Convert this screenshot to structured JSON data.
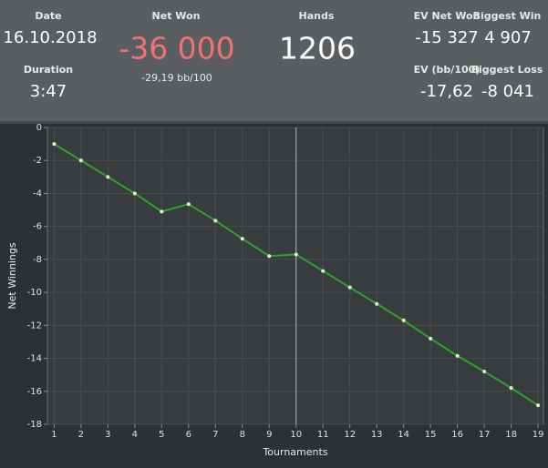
{
  "header": {
    "date_label": "Date",
    "date": "16.10.2018",
    "duration_label": "Duration",
    "duration": "3:47",
    "net_won_label": "Net Won",
    "net_won": "-36 000",
    "net_won_bb": "-29,19 bb/100",
    "hands_label": "Hands",
    "hands": "1206",
    "ev_net_won_label": "EV Net Won",
    "ev_net_won": "-15 327",
    "biggest_win_label": "Biggest Win",
    "biggest_win": "4 907",
    "ev_bb_label": "EV (bb/100)",
    "ev_bb": "-17,62",
    "biggest_loss_label": "Biggest Loss",
    "biggest_loss": "-8 041"
  },
  "chart_data": {
    "type": "line",
    "x_label": "Tournaments",
    "y_label": "Net Winnings",
    "x": [
      1,
      2,
      3,
      4,
      5,
      6,
      7,
      8,
      9,
      10,
      11,
      12,
      13,
      14,
      15,
      16,
      17,
      18,
      19
    ],
    "series": [
      {
        "color": "#2aa52a",
        "marker_color": "#e6f2c8",
        "values": [
          -1,
          -2,
          -3,
          -4,
          -5.1,
          -4.65,
          -5.65,
          -6.75,
          -7.8,
          -7.7,
          -8.7,
          -9.7,
          -10.7,
          -11.7,
          -12.8,
          -13.85,
          -14.8,
          -15.8,
          -16.85
        ]
      }
    ],
    "xlim": [
      0.75,
      19.2
    ],
    "ylim": [
      -18,
      0
    ],
    "xticks": [
      1,
      2,
      3,
      4,
      5,
      6,
      7,
      8,
      9,
      10,
      11,
      12,
      13,
      14,
      15,
      16,
      17,
      18,
      19
    ],
    "yticks": [
      0,
      -2,
      -4,
      -6,
      -8,
      -10,
      -12,
      -14,
      -16,
      -18
    ],
    "grid": true,
    "crosshair_x": 10
  }
}
